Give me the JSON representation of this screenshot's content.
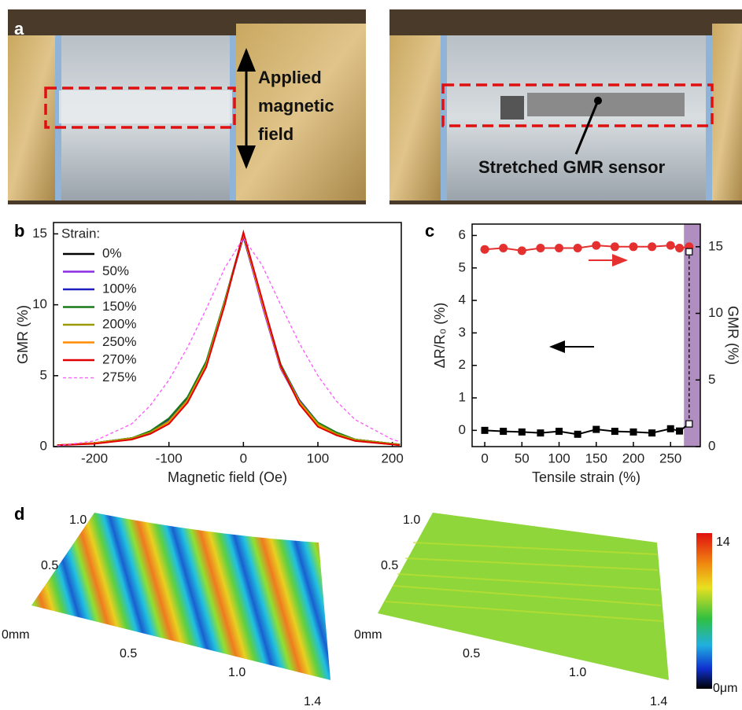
{
  "panel_labels": [
    "a",
    "b",
    "c",
    "d"
  ],
  "photos": {
    "left_annotation": [
      "Applied",
      "magnetic",
      "field"
    ],
    "right_annotation": "Stretched GMR sensor"
  },
  "chart_data": [
    {
      "type": "line",
      "xlabel": "Magnetic field (Oe)",
      "ylabel": "GMR (%)",
      "legend_title": "Strain:",
      "x": [
        -250,
        -200,
        -150,
        -125,
        -100,
        -75,
        -50,
        -25,
        0,
        25,
        50,
        75,
        100,
        125,
        150,
        200,
        210
      ],
      "xlim": [
        -255,
        212
      ],
      "xticks": [
        -200,
        -100,
        0,
        100,
        200
      ],
      "ylim": [
        0,
        15.8
      ],
      "yticks": [
        0,
        5,
        10,
        15
      ],
      "series": [
        {
          "name": "0%",
          "color": "#000000",
          "values": [
            0.1,
            0.25,
            0.6,
            1.0,
            1.8,
            3.3,
            5.8,
            10.2,
            14.8,
            10.1,
            5.6,
            3.1,
            1.6,
            0.9,
            0.5,
            0.2,
            0.15
          ]
        },
        {
          "name": "50%",
          "color": "#8a2be2",
          "values": [
            0.1,
            0.25,
            0.6,
            1.0,
            1.8,
            3.2,
            5.7,
            10.1,
            14.9,
            10.0,
            5.5,
            3.1,
            1.6,
            0.9,
            0.5,
            0.2,
            0.15
          ]
        },
        {
          "name": "100%",
          "color": "#1f1fbf",
          "values": [
            0.1,
            0.25,
            0.6,
            1.0,
            1.9,
            3.4,
            5.9,
            10.3,
            15.0,
            10.3,
            5.8,
            3.3,
            1.7,
            1.0,
            0.5,
            0.2,
            0.15
          ]
        },
        {
          "name": "150%",
          "color": "#1a7a1a",
          "values": [
            0.1,
            0.25,
            0.6,
            1.1,
            2.0,
            3.5,
            6.0,
            10.3,
            15.0,
            10.3,
            5.8,
            3.2,
            1.7,
            1.0,
            0.5,
            0.2,
            0.15
          ]
        },
        {
          "name": "200%",
          "color": "#9a9a00",
          "values": [
            0.1,
            0.25,
            0.6,
            1.0,
            1.8,
            3.3,
            5.8,
            10.2,
            15.0,
            10.2,
            5.7,
            3.2,
            1.6,
            0.9,
            0.5,
            0.2,
            0.15
          ]
        },
        {
          "name": "250%",
          "color": "#ff8c00",
          "values": [
            0.1,
            0.25,
            0.5,
            0.9,
            1.7,
            3.2,
            5.7,
            10.1,
            15.0,
            10.2,
            5.6,
            3.1,
            1.5,
            0.8,
            0.4,
            0.15,
            0.1
          ]
        },
        {
          "name": "270%",
          "color": "#e00000",
          "values": [
            0.1,
            0.2,
            0.5,
            0.9,
            1.6,
            3.1,
            5.6,
            10.0,
            15.1,
            10.4,
            5.7,
            3.0,
            1.4,
            0.8,
            0.4,
            0.15,
            0.1
          ]
        },
        {
          "name": "275%",
          "color": "#ff55ff",
          "line_style": "dashed",
          "values": [
            0.05,
            0.4,
            1.6,
            2.9,
            4.7,
            7.0,
            9.7,
            12.6,
            14.7,
            12.8,
            10.0,
            7.3,
            5.0,
            3.2,
            1.9,
            0.5,
            0.35
          ]
        }
      ]
    },
    {
      "type": "line",
      "xlabel": "Tensile strain (%)",
      "ylabel": "ΔR/R₀ (%)",
      "y2label": "GMR (%)",
      "x": [
        0,
        25,
        50,
        75,
        100,
        125,
        150,
        175,
        200,
        225,
        250,
        262,
        275
      ],
      "xlim": [
        -17,
        290
      ],
      "xticks": [
        0,
        50,
        100,
        150,
        200,
        250
      ],
      "ylim": [
        -0.5,
        6.35
      ],
      "yticks": [
        0,
        1,
        2,
        3,
        4,
        5,
        6
      ],
      "y2lim": [
        0,
        16.7
      ],
      "y2ticks": [
        0,
        5,
        10,
        15
      ],
      "shaded_xrange": [
        268,
        290
      ],
      "shaded_color": "#a27bb5",
      "series": [
        {
          "color": "#000000",
          "marker": "square",
          "values": [
            0,
            -0.03,
            -0.05,
            -0.08,
            -0.03,
            -0.12,
            0.03,
            -0.03,
            -0.05,
            -0.08,
            0.05,
            -0.02,
            0.2
          ]
        },
        {
          "color": "#e53030",
          "marker": "circle",
          "axis": "y2",
          "values": [
            14.8,
            14.9,
            14.7,
            14.9,
            14.9,
            14.9,
            15.1,
            15.0,
            15.0,
            15.0,
            15.1,
            14.9,
            15.0
          ]
        },
        {
          "color": "#000000",
          "marker": "open-square",
          "line_style": "dashed",
          "x": [
            275,
            275
          ],
          "values": [
            0.2,
            5.5
          ]
        }
      ]
    }
  ],
  "surfaces": {
    "left_axis_labels": [
      "1.0",
      "0.5",
      "0mm",
      "0.5",
      "1.0",
      "1.4"
    ],
    "right_axis_labels": [
      "1.0",
      "0.5",
      "0mm",
      "0.5",
      "1.0",
      "1.4"
    ],
    "colorbar_labels": [
      "14",
      "0μm"
    ]
  }
}
